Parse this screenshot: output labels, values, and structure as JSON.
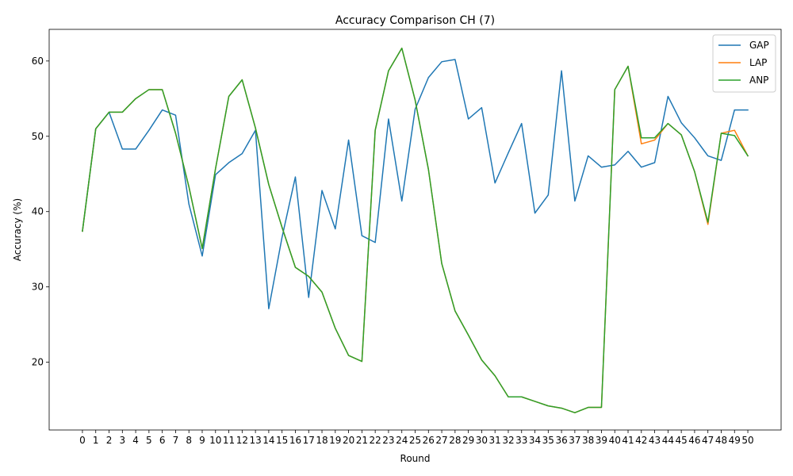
{
  "chart_data": {
    "type": "line",
    "title": "Accuracy Comparison CH (7)",
    "xlabel": "Round",
    "ylabel": "Accuracy (%)",
    "x": [
      0,
      1,
      2,
      3,
      4,
      5,
      6,
      7,
      8,
      9,
      10,
      11,
      12,
      13,
      14,
      15,
      16,
      17,
      18,
      19,
      20,
      21,
      22,
      23,
      24,
      25,
      26,
      27,
      28,
      29,
      30,
      31,
      32,
      33,
      34,
      35,
      36,
      37,
      38,
      39,
      40,
      41,
      42,
      43,
      44,
      45,
      46,
      47,
      48,
      49,
      50
    ],
    "xlim": [
      -2.5,
      52.5
    ],
    "ylim": [
      11,
      64.2
    ],
    "yticks": [
      20,
      30,
      40,
      50,
      60
    ],
    "grid": false,
    "legend_position": "top-right",
    "series": [
      {
        "name": "GAP",
        "color": "#1f77b4",
        "values": [
          37.4,
          51.0,
          53.2,
          48.3,
          48.3,
          50.8,
          53.5,
          52.8,
          41.0,
          34.1,
          44.9,
          46.5,
          47.7,
          50.8,
          27.1,
          36.6,
          44.6,
          28.6,
          42.8,
          37.7,
          49.5,
          36.8,
          35.9,
          52.3,
          41.4,
          53.6,
          57.8,
          59.9,
          60.2,
          52.3,
          53.8,
          43.8,
          47.8,
          51.7,
          39.8,
          42.2,
          58.7,
          41.4,
          47.4,
          45.9,
          46.2,
          48.0,
          45.9,
          46.5,
          55.3,
          51.8,
          49.8,
          47.4,
          46.8,
          53.5,
          53.5
        ]
      },
      {
        "name": "LAP",
        "color": "#ff7f0e",
        "values": [
          37.4,
          51.0,
          53.2,
          53.2,
          55.0,
          56.2,
          56.2,
          50.4,
          43.3,
          35.1,
          45.7,
          55.3,
          57.5,
          51.1,
          43.6,
          37.9,
          32.6,
          31.4,
          29.3,
          24.5,
          20.9,
          20.1,
          50.8,
          58.7,
          61.7,
          54.8,
          45.6,
          33.1,
          26.8,
          23.6,
          20.3,
          18.2,
          15.4,
          15.4,
          14.8,
          14.2,
          13.9,
          13.3,
          14.0,
          14.0,
          56.2,
          59.3,
          49.0,
          49.5,
          51.7,
          50.2,
          45.3,
          38.3,
          50.4,
          50.8,
          47.4
        ]
      },
      {
        "name": "ANP",
        "color": "#2ca02c",
        "values": [
          37.4,
          51.0,
          53.2,
          53.2,
          55.0,
          56.2,
          56.2,
          50.4,
          43.3,
          35.1,
          45.7,
          55.3,
          57.5,
          51.1,
          43.6,
          37.9,
          32.6,
          31.4,
          29.3,
          24.5,
          20.9,
          20.1,
          50.8,
          58.7,
          61.7,
          54.8,
          45.6,
          33.1,
          26.8,
          23.6,
          20.3,
          18.2,
          15.4,
          15.4,
          14.8,
          14.2,
          13.9,
          13.3,
          14.0,
          14.0,
          56.2,
          59.3,
          49.8,
          49.8,
          51.7,
          50.2,
          45.3,
          38.6,
          50.4,
          50.1,
          47.4
        ]
      }
    ]
  }
}
